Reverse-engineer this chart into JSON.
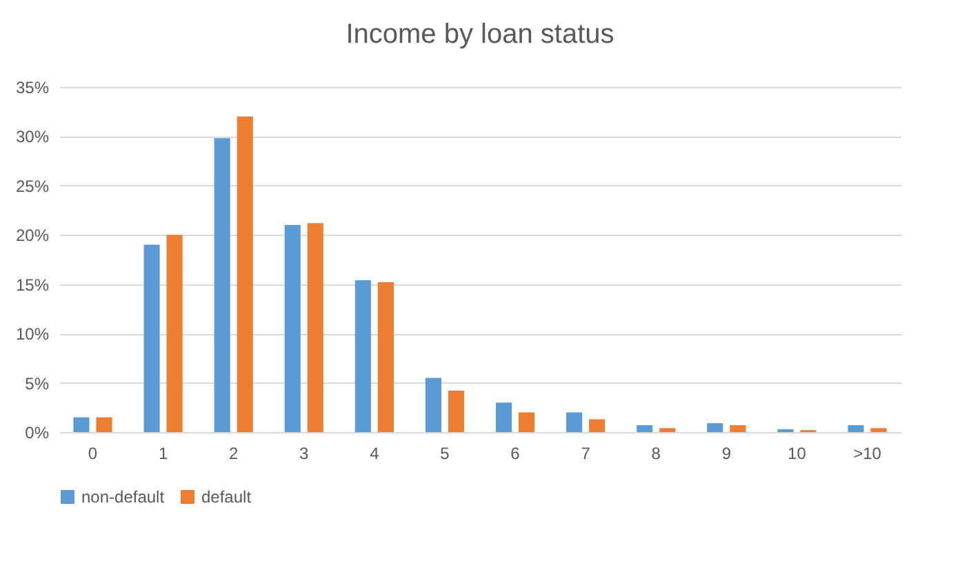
{
  "chart_data": {
    "type": "bar",
    "title": "Income by loan status",
    "categories": [
      "0",
      "1",
      "2",
      "3",
      "4",
      "5",
      "6",
      "7",
      "8",
      "9",
      "10",
      ">10"
    ],
    "series": [
      {
        "name": "non-default",
        "color": "#5b9bd5",
        "values": [
          1.5,
          19.0,
          29.8,
          21.0,
          15.4,
          5.5,
          3.0,
          2.0,
          0.7,
          0.9,
          0.3,
          0.7
        ]
      },
      {
        "name": "default",
        "color": "#ed7d31",
        "values": [
          1.5,
          20.0,
          32.0,
          21.2,
          15.2,
          4.2,
          2.0,
          1.3,
          0.4,
          0.7,
          0.2,
          0.4
        ]
      }
    ],
    "ylim": [
      0,
      35
    ],
    "yticks": [
      {
        "value": 0,
        "label": "0%"
      },
      {
        "value": 5,
        "label": "5%"
      },
      {
        "value": 10,
        "label": "10%"
      },
      {
        "value": 15,
        "label": "15%"
      },
      {
        "value": 20,
        "label": "20%"
      },
      {
        "value": 25,
        "label": "25%"
      },
      {
        "value": 30,
        "label": "30%"
      },
      {
        "value": 35,
        "label": "35%"
      }
    ],
    "grid": "y",
    "legend": "bottom"
  }
}
